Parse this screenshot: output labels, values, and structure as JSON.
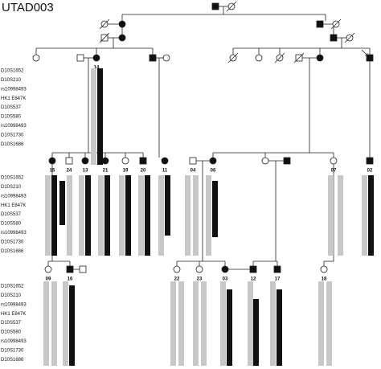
{
  "title": "UTAD003",
  "markers": [
    "D10S1652",
    "D10S210",
    "rs10998493",
    "HK1 E847K",
    "D10S537",
    "D10S580",
    "rs10998493",
    "D10S1730",
    "D10S1686"
  ],
  "individuals": [
    "14",
    "15",
    "24",
    "13",
    "21",
    "19",
    "20",
    "11",
    "04",
    "06",
    "07",
    "02",
    "09",
    "16",
    "22",
    "23",
    "03",
    "12",
    "17",
    "18"
  ]
}
